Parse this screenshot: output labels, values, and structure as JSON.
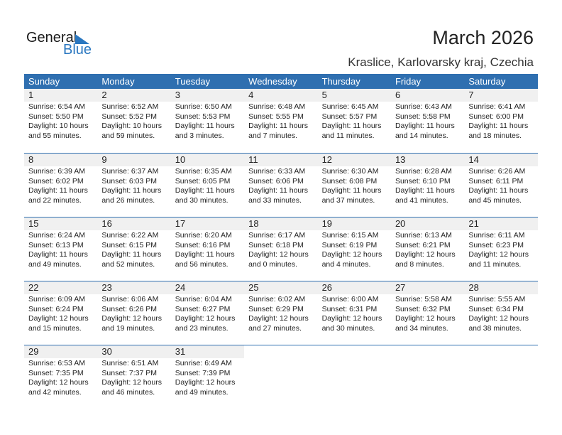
{
  "logo": {
    "text1": "General",
    "text2": "Blue"
  },
  "title": "March 2026",
  "location": "Kraslice, Karlovarsky kraj, Czechia",
  "colors": {
    "header": "#2f6fb0",
    "logo_blue": "#2a77c0",
    "date_strip": "#f0f0f0"
  },
  "weekdays": [
    "Sunday",
    "Monday",
    "Tuesday",
    "Wednesday",
    "Thursday",
    "Friday",
    "Saturday"
  ],
  "days": [
    {
      "day": "1",
      "sunrise": "Sunrise: 6:54 AM",
      "sunset": "Sunset: 5:50 PM",
      "daylight": "Daylight: 10 hours",
      "minutes": "and 55 minutes."
    },
    {
      "day": "2",
      "sunrise": "Sunrise: 6:52 AM",
      "sunset": "Sunset: 5:52 PM",
      "daylight": "Daylight: 10 hours",
      "minutes": "and 59 minutes."
    },
    {
      "day": "3",
      "sunrise": "Sunrise: 6:50 AM",
      "sunset": "Sunset: 5:53 PM",
      "daylight": "Daylight: 11 hours",
      "minutes": "and 3 minutes."
    },
    {
      "day": "4",
      "sunrise": "Sunrise: 6:48 AM",
      "sunset": "Sunset: 5:55 PM",
      "daylight": "Daylight: 11 hours",
      "minutes": "and 7 minutes."
    },
    {
      "day": "5",
      "sunrise": "Sunrise: 6:45 AM",
      "sunset": "Sunset: 5:57 PM",
      "daylight": "Daylight: 11 hours",
      "minutes": "and 11 minutes."
    },
    {
      "day": "6",
      "sunrise": "Sunrise: 6:43 AM",
      "sunset": "Sunset: 5:58 PM",
      "daylight": "Daylight: 11 hours",
      "minutes": "and 14 minutes."
    },
    {
      "day": "7",
      "sunrise": "Sunrise: 6:41 AM",
      "sunset": "Sunset: 6:00 PM",
      "daylight": "Daylight: 11 hours",
      "minutes": "and 18 minutes."
    },
    {
      "day": "8",
      "sunrise": "Sunrise: 6:39 AM",
      "sunset": "Sunset: 6:02 PM",
      "daylight": "Daylight: 11 hours",
      "minutes": "and 22 minutes."
    },
    {
      "day": "9",
      "sunrise": "Sunrise: 6:37 AM",
      "sunset": "Sunset: 6:03 PM",
      "daylight": "Daylight: 11 hours",
      "minutes": "and 26 minutes."
    },
    {
      "day": "10",
      "sunrise": "Sunrise: 6:35 AM",
      "sunset": "Sunset: 6:05 PM",
      "daylight": "Daylight: 11 hours",
      "minutes": "and 30 minutes."
    },
    {
      "day": "11",
      "sunrise": "Sunrise: 6:33 AM",
      "sunset": "Sunset: 6:06 PM",
      "daylight": "Daylight: 11 hours",
      "minutes": "and 33 minutes."
    },
    {
      "day": "12",
      "sunrise": "Sunrise: 6:30 AM",
      "sunset": "Sunset: 6:08 PM",
      "daylight": "Daylight: 11 hours",
      "minutes": "and 37 minutes."
    },
    {
      "day": "13",
      "sunrise": "Sunrise: 6:28 AM",
      "sunset": "Sunset: 6:10 PM",
      "daylight": "Daylight: 11 hours",
      "minutes": "and 41 minutes."
    },
    {
      "day": "14",
      "sunrise": "Sunrise: 6:26 AM",
      "sunset": "Sunset: 6:11 PM",
      "daylight": "Daylight: 11 hours",
      "minutes": "and 45 minutes."
    },
    {
      "day": "15",
      "sunrise": "Sunrise: 6:24 AM",
      "sunset": "Sunset: 6:13 PM",
      "daylight": "Daylight: 11 hours",
      "minutes": "and 49 minutes."
    },
    {
      "day": "16",
      "sunrise": "Sunrise: 6:22 AM",
      "sunset": "Sunset: 6:15 PM",
      "daylight": "Daylight: 11 hours",
      "minutes": "and 52 minutes."
    },
    {
      "day": "17",
      "sunrise": "Sunrise: 6:20 AM",
      "sunset": "Sunset: 6:16 PM",
      "daylight": "Daylight: 11 hours",
      "minutes": "and 56 minutes."
    },
    {
      "day": "18",
      "sunrise": "Sunrise: 6:17 AM",
      "sunset": "Sunset: 6:18 PM",
      "daylight": "Daylight: 12 hours",
      "minutes": "and 0 minutes."
    },
    {
      "day": "19",
      "sunrise": "Sunrise: 6:15 AM",
      "sunset": "Sunset: 6:19 PM",
      "daylight": "Daylight: 12 hours",
      "minutes": "and 4 minutes."
    },
    {
      "day": "20",
      "sunrise": "Sunrise: 6:13 AM",
      "sunset": "Sunset: 6:21 PM",
      "daylight": "Daylight: 12 hours",
      "minutes": "and 8 minutes."
    },
    {
      "day": "21",
      "sunrise": "Sunrise: 6:11 AM",
      "sunset": "Sunset: 6:23 PM",
      "daylight": "Daylight: 12 hours",
      "minutes": "and 11 minutes."
    },
    {
      "day": "22",
      "sunrise": "Sunrise: 6:09 AM",
      "sunset": "Sunset: 6:24 PM",
      "daylight": "Daylight: 12 hours",
      "minutes": "and 15 minutes."
    },
    {
      "day": "23",
      "sunrise": "Sunrise: 6:06 AM",
      "sunset": "Sunset: 6:26 PM",
      "daylight": "Daylight: 12 hours",
      "minutes": "and 19 minutes."
    },
    {
      "day": "24",
      "sunrise": "Sunrise: 6:04 AM",
      "sunset": "Sunset: 6:27 PM",
      "daylight": "Daylight: 12 hours",
      "minutes": "and 23 minutes."
    },
    {
      "day": "25",
      "sunrise": "Sunrise: 6:02 AM",
      "sunset": "Sunset: 6:29 PM",
      "daylight": "Daylight: 12 hours",
      "minutes": "and 27 minutes."
    },
    {
      "day": "26",
      "sunrise": "Sunrise: 6:00 AM",
      "sunset": "Sunset: 6:31 PM",
      "daylight": "Daylight: 12 hours",
      "minutes": "and 30 minutes."
    },
    {
      "day": "27",
      "sunrise": "Sunrise: 5:58 AM",
      "sunset": "Sunset: 6:32 PM",
      "daylight": "Daylight: 12 hours",
      "minutes": "and 34 minutes."
    },
    {
      "day": "28",
      "sunrise": "Sunrise: 5:55 AM",
      "sunset": "Sunset: 6:34 PM",
      "daylight": "Daylight: 12 hours",
      "minutes": "and 38 minutes."
    },
    {
      "day": "29",
      "sunrise": "Sunrise: 6:53 AM",
      "sunset": "Sunset: 7:35 PM",
      "daylight": "Daylight: 12 hours",
      "minutes": "and 42 minutes."
    },
    {
      "day": "30",
      "sunrise": "Sunrise: 6:51 AM",
      "sunset": "Sunset: 7:37 PM",
      "daylight": "Daylight: 12 hours",
      "minutes": "and 46 minutes."
    },
    {
      "day": "31",
      "sunrise": "Sunrise: 6:49 AM",
      "sunset": "Sunset: 7:39 PM",
      "daylight": "Daylight: 12 hours",
      "minutes": "and 49 minutes."
    }
  ]
}
